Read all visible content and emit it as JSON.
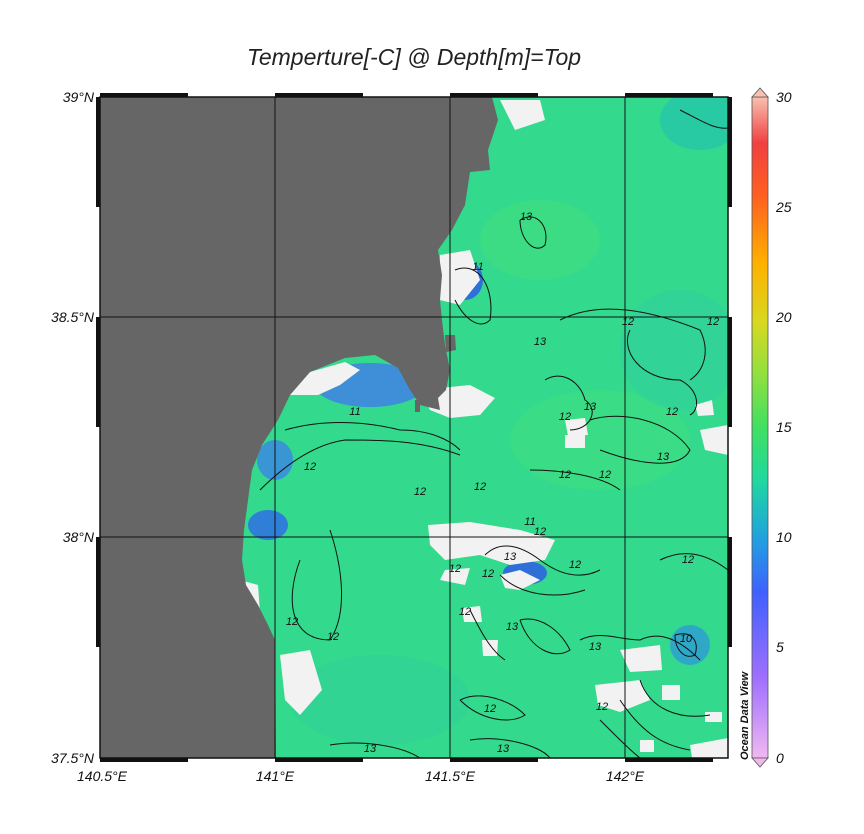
{
  "title": "Temperture[-C] @ Depth[m]=Top",
  "map": {
    "lat_ticks": [
      "39°N",
      "38.5°N",
      "38°N",
      "37.5°N"
    ],
    "lon_ticks": [
      "140.5°E",
      "141°E",
      "141.5°E",
      "142°E"
    ],
    "contour_labels": [
      {
        "text": "12"
      },
      {
        "text": "12"
      },
      {
        "text": "12"
      },
      {
        "text": "12"
      },
      {
        "text": "12"
      },
      {
        "text": "12"
      },
      {
        "text": "12"
      },
      {
        "text": "12"
      },
      {
        "text": "12"
      },
      {
        "text": "12"
      },
      {
        "text": "12"
      },
      {
        "text": "12"
      },
      {
        "text": "12"
      },
      {
        "text": "12"
      },
      {
        "text": "12"
      },
      {
        "text": "12"
      },
      {
        "text": "12"
      },
      {
        "text": "12"
      },
      {
        "text": "12"
      },
      {
        "text": "13"
      },
      {
        "text": "13"
      },
      {
        "text": "13"
      },
      {
        "text": "13"
      },
      {
        "text": "13"
      },
      {
        "text": "13"
      },
      {
        "text": "13"
      },
      {
        "text": "13"
      },
      {
        "text": "13"
      },
      {
        "text": "11"
      },
      {
        "text": "11"
      },
      {
        "text": "11"
      },
      {
        "text": "10"
      }
    ],
    "colors": {
      "land": "#666666",
      "ocean": "#33d98c",
      "missing": "#f2f2f2",
      "cold": "#2a7fd4"
    }
  },
  "colorbar": {
    "ticks": [
      "30",
      "25",
      "20",
      "15",
      "10",
      "5",
      "0"
    ],
    "credit": "Ocean Data View",
    "range": [
      0,
      30
    ]
  }
}
